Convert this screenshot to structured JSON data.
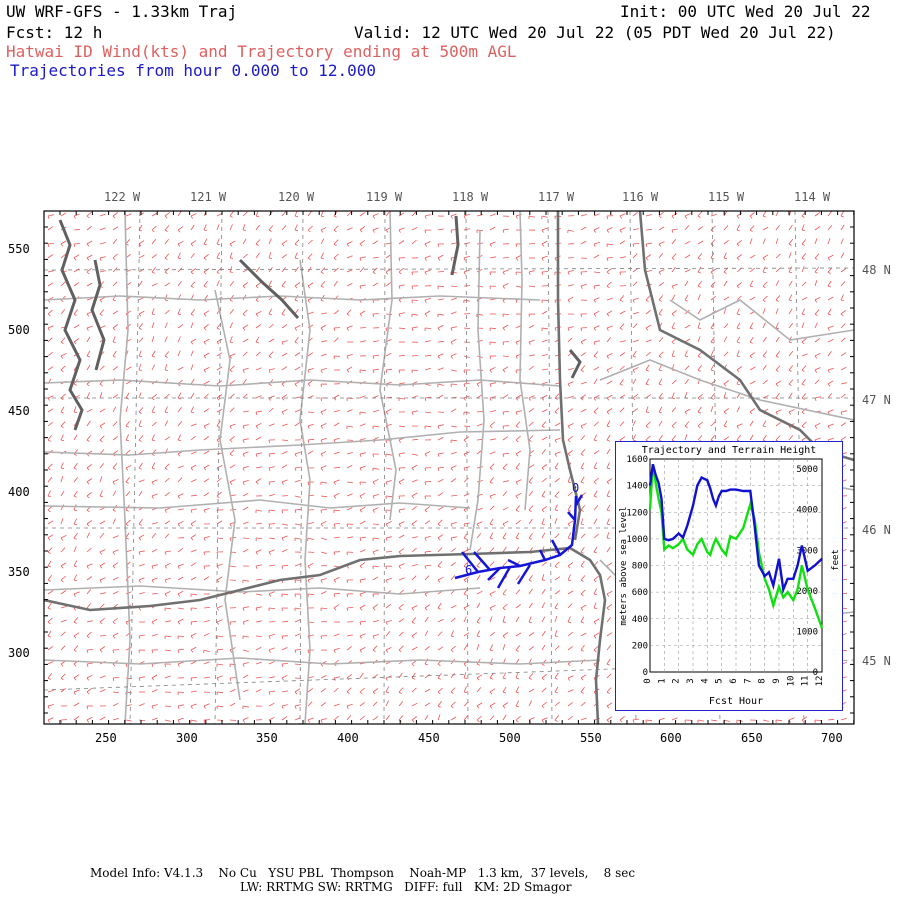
{
  "header": {
    "title_left": "UW WRF-GFS - 1.33km Traj",
    "init": "Init: 00 UTC Wed 20 Jul 22",
    "fcst": "Fcst:  12 h",
    "valid": "Valid: 12 UTC Wed 20 Jul 22 (05 PDT Wed 20 Jul 22)",
    "subtitle_red": "Hatwai ID Wind(kts) and Trajectory ending at 500m AGL",
    "subtitle_blue": "Trajectories from hour   0.000 to  12.000"
  },
  "longitude_labels": [
    "122 W",
    "121 W",
    "120 W",
    "119 W",
    "118 W",
    "117 W",
    "116 W",
    "115 W",
    "114 W"
  ],
  "latitude_labels": [
    "48 N",
    "47 N",
    "46 N",
    "45 N"
  ],
  "x_ticks": [
    "250",
    "300",
    "350",
    "400",
    "450",
    "500",
    "550",
    "600",
    "650",
    "700"
  ],
  "y_ticks": [
    "550",
    "500",
    "450",
    "400",
    "350",
    "300"
  ],
  "trajectory_markers": [
    "6",
    "0"
  ],
  "inset": {
    "title": "Trajectory and Terrain Height",
    "ylabel_left": "meters above sea level",
    "ylabel_right": "feet",
    "xlabel": "Fcst Hour",
    "left_ticks": [
      "1600",
      "1400",
      "1200",
      "1000",
      "800",
      "600",
      "400",
      "200",
      "0"
    ],
    "right_ticks": [
      "5000",
      "4000",
      "3000",
      "2000",
      "1000",
      "0"
    ],
    "hour_ticks": [
      "0",
      "1",
      "2",
      "3",
      "4",
      "5",
      "6",
      "7",
      "8",
      "9",
      "10",
      "11",
      "12"
    ],
    "colors": {
      "trajectory": "#1010d0",
      "terrain": "#10e010"
    }
  },
  "chart_data": {
    "type": "line",
    "title": "Trajectory and Terrain Height",
    "xlabel": "Fcst Hour",
    "ylabel": "meters above sea level",
    "xlim": [
      0,
      12
    ],
    "ylim": [
      0,
      1600
    ],
    "series": [
      {
        "x": [
          0,
          0.2,
          0.4,
          0.6,
          0.8,
          1,
          1.3,
          1.6,
          2,
          2.3,
          2.6,
          3,
          3.3,
          3.6,
          4,
          4.2,
          4.4,
          4.6,
          4.8,
          5,
          5.3,
          5.6,
          6,
          6.5,
          7,
          7.3,
          7.6,
          8,
          8.3,
          8.6,
          9,
          9.3,
          9.6,
          10,
          10.3,
          10.6,
          11,
          11.5,
          12
        ],
        "values": [
          1400,
          1560,
          1480,
          1420,
          1300,
          1000,
          990,
          1000,
          1040,
          1010,
          1100,
          1250,
          1400,
          1460,
          1440,
          1380,
          1300,
          1250,
          1320,
          1360,
          1360,
          1370,
          1370,
          1360,
          1360,
          1100,
          800,
          720,
          750,
          650,
          850,
          620,
          700,
          700,
          800,
          950,
          760,
          800,
          850
        ]
      },
      {
        "x": [
          0,
          0.2,
          0.4,
          0.6,
          0.8,
          1,
          1.3,
          1.6,
          2,
          2.3,
          2.6,
          3,
          3.3,
          3.6,
          4,
          4.2,
          4.4,
          4.6,
          4.8,
          5,
          5.3,
          5.6,
          6,
          6.5,
          7,
          7.3,
          7.6,
          8,
          8.3,
          8.6,
          9,
          9.3,
          9.6,
          10,
          10.3,
          10.6,
          11,
          11.5,
          12
        ],
        "values": [
          1220,
          1560,
          1420,
          1300,
          1200,
          920,
          950,
          930,
          960,
          1000,
          920,
          880,
          960,
          1000,
          900,
          880,
          950,
          1000,
          960,
          920,
          880,
          1020,
          1000,
          1080,
          1260,
          1150,
          900,
          700,
          620,
          500,
          640,
          560,
          600,
          540,
          620,
          800,
          620,
          480,
          330
        ]
      }
    ]
  }
}
